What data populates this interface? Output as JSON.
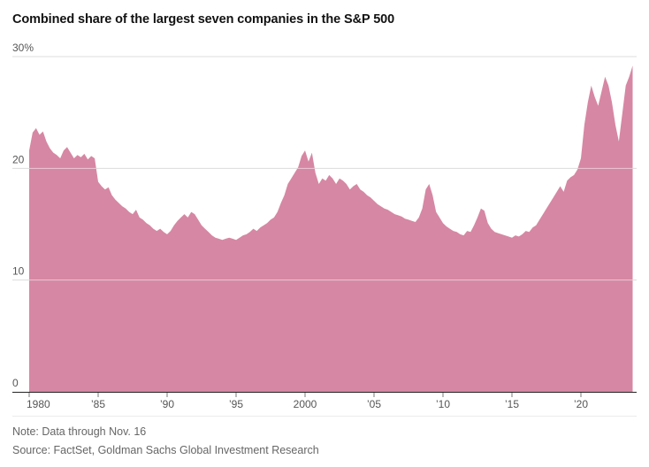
{
  "chart_data": {
    "type": "area",
    "title": "Combined share of the largest seven companies in the S&P 500",
    "note": "Note: Data through Nov. 16",
    "source": "Source: FactSet, Goldman Sachs Global Investment Research",
    "xlabel": "",
    "ylabel": "",
    "ylim": [
      0,
      30
    ],
    "x_start": 1980,
    "x_step": 0.25,
    "values": [
      21.6,
      23.2,
      23.6,
      23.0,
      23.3,
      22.4,
      21.8,
      21.4,
      21.2,
      20.9,
      21.6,
      21.9,
      21.4,
      20.9,
      21.2,
      21.0,
      21.3,
      20.8,
      21.1,
      20.9,
      18.8,
      18.4,
      18.1,
      18.3,
      17.6,
      17.2,
      16.9,
      16.6,
      16.4,
      16.1,
      15.9,
      16.3,
      15.6,
      15.4,
      15.1,
      14.9,
      14.6,
      14.4,
      14.6,
      14.3,
      14.1,
      14.4,
      14.9,
      15.3,
      15.6,
      15.9,
      15.6,
      16.1,
      15.9,
      15.4,
      14.9,
      14.6,
      14.3,
      14.0,
      13.8,
      13.7,
      13.6,
      13.7,
      13.8,
      13.7,
      13.6,
      13.8,
      14.0,
      14.1,
      14.3,
      14.6,
      14.4,
      14.7,
      14.9,
      15.1,
      15.4,
      15.6,
      16.1,
      16.9,
      17.6,
      18.6,
      19.1,
      19.6,
      20.1,
      21.1,
      21.6,
      20.6,
      21.4,
      19.6,
      18.6,
      19.1,
      18.9,
      19.4,
      19.1,
      18.6,
      19.1,
      18.9,
      18.6,
      18.1,
      18.4,
      18.6,
      18.1,
      17.9,
      17.6,
      17.4,
      17.1,
      16.8,
      16.6,
      16.4,
      16.3,
      16.1,
      15.9,
      15.8,
      15.7,
      15.5,
      15.4,
      15.3,
      15.2,
      15.6,
      16.4,
      18.1,
      18.6,
      17.6,
      16.1,
      15.6,
      15.1,
      14.8,
      14.6,
      14.4,
      14.3,
      14.1,
      14.0,
      14.4,
      14.3,
      14.9,
      15.6,
      16.4,
      16.2,
      15.1,
      14.6,
      14.3,
      14.2,
      14.1,
      14.0,
      13.9,
      13.8,
      14.0,
      13.9,
      14.1,
      14.4,
      14.3,
      14.7,
      14.9,
      15.4,
      15.9,
      16.4,
      16.9,
      17.4,
      17.9,
      18.4,
      17.9,
      18.9,
      19.2,
      19.4,
      19.9,
      20.9,
      23.9,
      25.9,
      27.4,
      26.4,
      25.6,
      26.9,
      28.2,
      27.4,
      25.9,
      23.9,
      22.4,
      24.9,
      27.4,
      28.2,
      29.2
    ],
    "y_ticks": [
      {
        "v": 0,
        "label": "0"
      },
      {
        "v": 10,
        "label": "10"
      },
      {
        "v": 20,
        "label": "20"
      },
      {
        "v": 30,
        "label": "30%"
      }
    ],
    "x_ticks": [
      {
        "v": 1980,
        "label": "1980"
      },
      {
        "v": 1985,
        "label": "’85"
      },
      {
        "v": 1990,
        "label": "’90"
      },
      {
        "v": 1995,
        "label": "’95"
      },
      {
        "v": 2000,
        "label": "2000"
      },
      {
        "v": 2005,
        "label": "’05"
      },
      {
        "v": 2010,
        "label": "’10"
      },
      {
        "v": 2015,
        "label": "’15"
      },
      {
        "v": 2020,
        "label": "’20"
      }
    ],
    "grid": "on",
    "legend": "none",
    "colors": {
      "area": "#d687a3",
      "grid": "#dcdcdc",
      "grid_over_area": "rgba(255,255,255,0.55)",
      "axis": "#222222",
      "tick": "#7a7a7a",
      "tick_text": "#555555",
      "title_text": "#121212",
      "footer_text": "#666666"
    }
  }
}
